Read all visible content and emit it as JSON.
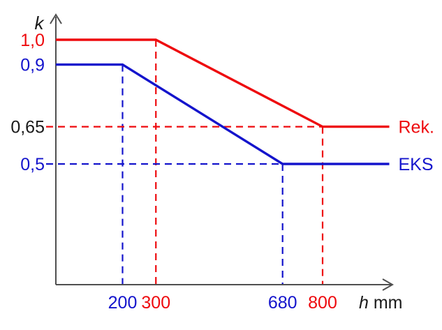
{
  "chart_data": {
    "type": "line",
    "title": "",
    "ylabel": "k",
    "xlabel": {
      "symbol": "h",
      "unit": "mm"
    },
    "x_range_mm": [
      0,
      1000
    ],
    "y_range_k": [
      0,
      1.08
    ],
    "grid": false,
    "background_color": "#ffffff",
    "axis_color": "#4f4f4f",
    "series": [
      {
        "name": "Rek.",
        "color": "#ee0a0e",
        "points": [
          [
            0,
            1.0
          ],
          [
            300,
            1.0
          ],
          [
            800,
            0.65
          ],
          [
            1000,
            0.65
          ]
        ]
      },
      {
        "name": "EKS",
        "color": "#1414cc",
        "points": [
          [
            0,
            0.9
          ],
          [
            200,
            0.9
          ],
          [
            680,
            0.5
          ],
          [
            1000,
            0.5
          ]
        ]
      }
    ],
    "guides": [
      {
        "axis": "x",
        "value": 200,
        "to_k": 0.9,
        "color": "#1414cc"
      },
      {
        "axis": "x",
        "value": 300,
        "to_k": 1.0,
        "color": "#ee0a0e"
      },
      {
        "axis": "x",
        "value": 680,
        "to_k": 0.5,
        "color": "#1414cc"
      },
      {
        "axis": "x",
        "value": 800,
        "to_k": 0.65,
        "color": "#ee0a0e"
      },
      {
        "axis": "y",
        "value": 0.65,
        "to_mm": 800,
        "color": "#ee0a0e"
      },
      {
        "axis": "y",
        "value": 0.5,
        "to_mm": 680,
        "color": "#1414cc"
      }
    ],
    "x_ticks": [
      {
        "value": 200,
        "label": "200",
        "color": "#1414cc"
      },
      {
        "value": 300,
        "label": "300",
        "color": "#ee0a0e"
      },
      {
        "value": 680,
        "label": "680",
        "color": "#1414cc"
      },
      {
        "value": 800,
        "label": "800",
        "color": "#ee0a0e"
      }
    ],
    "y_ticks": [
      {
        "value": 1.0,
        "label": "1,0",
        "color": "#ee0a0e"
      },
      {
        "value": 0.9,
        "label": "0,9",
        "color": "#1414cc"
      },
      {
        "value": 0.65,
        "label": "0,65",
        "color": "#1a1a1a"
      },
      {
        "value": 0.5,
        "label": "0,5",
        "color": "#1414cc"
      }
    ]
  }
}
